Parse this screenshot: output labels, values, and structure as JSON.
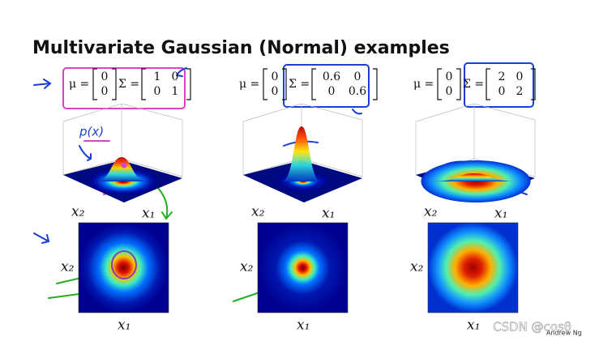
{
  "title": "Multivariate Gaussian (Normal) examples",
  "annotation": "p(x)",
  "panels": [
    {
      "mu_label": "μ =",
      "mu": [
        [
          0
        ],
        [
          0
        ]
      ],
      "sigma_label": "Σ =",
      "sigma": [
        [
          1,
          0
        ],
        [
          0,
          1
        ]
      ],
      "x1": "x₁",
      "x2": "x₂"
    },
    {
      "mu_label": "μ =",
      "mu": [
        [
          0
        ],
        [
          0
        ]
      ],
      "sigma_label": "Σ =",
      "sigma": [
        [
          0.6,
          0
        ],
        [
          0,
          0.6
        ]
      ],
      "x1": "x₁",
      "x2": "x₂"
    },
    {
      "mu_label": "μ =",
      "mu": [
        [
          0
        ],
        [
          0
        ]
      ],
      "sigma_label": "Σ =",
      "sigma": [
        [
          2,
          0
        ],
        [
          0,
          2
        ]
      ],
      "x1": "x₁",
      "x2": "x₂"
    }
  ],
  "footer": "Andrew Ng",
  "watermark": "CSDN @cosθ"
}
